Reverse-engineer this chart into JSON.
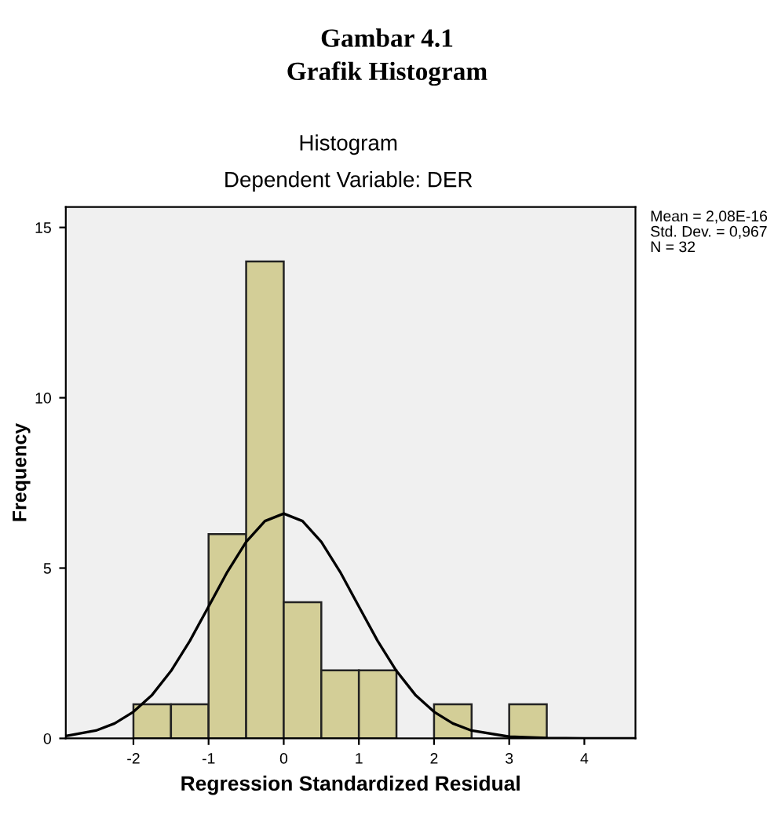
{
  "chart_data": {
    "type": "histogram",
    "title": "Gambar 4.1\nGrafik Histogram",
    "subtitle": "Histogram",
    "annotations": [
      "Dependent Variable: DER",
      "Mean = 2,08E-16\nStd. Dev. = 0,967\nN = 32"
    ],
    "xlabel": "Regression Standardized Residual",
    "ylabel": "Frequency",
    "bins": [
      -2,
      -1.5,
      -1,
      -0.5,
      0,
      0.5,
      1,
      1.5,
      2,
      2.5,
      3,
      3.5
    ],
    "values": [
      1,
      1,
      6,
      14,
      4,
      2,
      2,
      0,
      1,
      0,
      1
    ],
    "color": "#d3ce97",
    "series": [
      {
        "type": "line",
        "color": "#000000",
        "x": [
          -2.9,
          -2.5,
          -2.25,
          -2,
          -1.75,
          -1.5,
          -1.25,
          -1,
          -0.75,
          -0.5,
          -0.25,
          0,
          0.25,
          0.5,
          0.75,
          1,
          1.25,
          1.5,
          1.75,
          2,
          2.25,
          2.5,
          3,
          3.5,
          4,
          4.68
        ],
        "values": [
          0.07,
          0.23,
          0.44,
          0.78,
          1.28,
          1.98,
          2.86,
          3.87,
          4.89,
          5.77,
          6.38,
          6.6,
          6.38,
          5.77,
          4.89,
          3.87,
          2.86,
          1.98,
          1.28,
          0.78,
          0.44,
          0.23,
          0.05,
          0.01,
          0.0,
          0.0
        ]
      }
    ],
    "xlim": [
      -2.9,
      4.68
    ],
    "ylim": [
      0,
      15.6
    ],
    "xticks": [
      -2,
      -1,
      0,
      1,
      2,
      3,
      4
    ],
    "yticks": [
      0,
      5,
      10,
      15
    ],
    "grid": false,
    "legend": false
  }
}
